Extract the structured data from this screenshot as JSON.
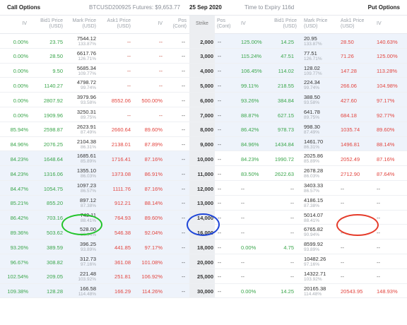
{
  "topbar": {
    "call_label": "Call Options",
    "futures": "BTCUSD200925 Futures: $9,653.77",
    "date": "25 Sep 2020",
    "expiry": "Time to Expiry 116d",
    "put_label": "Put Options"
  },
  "headers": {
    "iv": "IV",
    "bid1": "Bid1 Price",
    "usd": "(USD)",
    "mark": "Mark Price",
    "ask1": "Ask1 Price",
    "pos": "Pos",
    "cont": "(Cont)",
    "strike": "Strike"
  },
  "rows": [
    {
      "call": {
        "iv": "0.00%",
        "bid": "23.75",
        "mark": "7544.12",
        "mark_iv": "133.87%",
        "ask": "--",
        "ask_iv": "--",
        "pos": "--"
      },
      "strike": "2,000",
      "put": {
        "pos": "--",
        "iv": "125.00%",
        "bid": "14.25",
        "mark": "20.95",
        "mark_iv": "133.87%",
        "ask": "28.50",
        "ask_iv": "140.63%"
      }
    },
    {
      "call": {
        "iv": "0.00%",
        "bid": "28.50",
        "mark": "6617.76",
        "mark_iv": "126.71%",
        "ask": "--",
        "ask_iv": "--",
        "pos": "--"
      },
      "strike": "3,000",
      "put": {
        "pos": "--",
        "iv": "115.24%",
        "bid": "47.51",
        "mark": "77.51",
        "mark_iv": "126.71%",
        "ask": "71.26",
        "ask_iv": "125.00%"
      }
    },
    {
      "call": {
        "iv": "0.00%",
        "bid": "9.50",
        "mark": "5685.34",
        "mark_iv": "109.77%",
        "ask": "--",
        "ask_iv": "--",
        "pos": "--"
      },
      "strike": "4,000",
      "put": {
        "pos": "--",
        "iv": "106.45%",
        "bid": "114.02",
        "mark": "128.02",
        "mark_iv": "109.77%",
        "ask": "147.28",
        "ask_iv": "113.28%"
      }
    },
    {
      "call": {
        "iv": "0.00%",
        "bid": "1140.27",
        "mark": "4798.72",
        "mark_iv": "99.74%",
        "ask": "--",
        "ask_iv": "--",
        "pos": "--"
      },
      "strike": "5,000",
      "put": {
        "pos": "--",
        "iv": "99.11%",
        "bid": "218.55",
        "mark": "224.34",
        "mark_iv": "99.74%",
        "ask": "266.06",
        "ask_iv": "104.98%"
      }
    },
    {
      "call": {
        "iv": "0.00%",
        "bid": "2807.92",
        "mark": "3979.96",
        "mark_iv": "93.58%",
        "ask": "8552.06",
        "ask_iv": "500.00%",
        "pos": "--"
      },
      "strike": "6,000",
      "put": {
        "pos": "--",
        "iv": "93.26%",
        "bid": "384.84",
        "mark": "388.50",
        "mark_iv": "93.58%",
        "ask": "427.60",
        "ask_iv": "97.17%"
      }
    },
    {
      "call": {
        "iv": "0.00%",
        "bid": "1909.96",
        "mark": "3250.31",
        "mark_iv": "89.75%",
        "ask": "--",
        "ask_iv": "--",
        "pos": "--"
      },
      "strike": "7,000",
      "put": {
        "pos": "--",
        "iv": "88.87%",
        "bid": "627.15",
        "mark": "641.78",
        "mark_iv": "89.75%",
        "ask": "684.18",
        "ask_iv": "92.77%"
      }
    },
    {
      "call": {
        "iv": "85.94%",
        "bid": "2598.87",
        "mark": "2623.91",
        "mark_iv": "87.49%",
        "ask": "2660.64",
        "ask_iv": "89.60%",
        "pos": "--"
      },
      "strike": "8,000",
      "put": {
        "pos": "--",
        "iv": "86.42%",
        "bid": "978.73",
        "mark": "998.30",
        "mark_iv": "87.49%",
        "ask": "1035.74",
        "ask_iv": "89.60%"
      }
    },
    {
      "call": {
        "iv": "84.96%",
        "bid": "2076.25",
        "mark": "2104.38",
        "mark_iv": "86.31%",
        "ask": "2138.01",
        "ask_iv": "87.89%",
        "pos": "--"
      },
      "strike": "9,000",
      "put": {
        "pos": "--",
        "iv": "84.96%",
        "bid": "1434.84",
        "mark": "1461.70",
        "mark_iv": "86.31%",
        "ask": "1496.81",
        "ask_iv": "88.14%"
      }
    },
    {
      "call": {
        "iv": "84.23%",
        "bid": "1648.64",
        "mark": "1685.61",
        "mark_iv": "85.89%",
        "ask": "1716.41",
        "ask_iv": "87.16%",
        "pos": "--"
      },
      "strike": "10,000",
      "put": {
        "pos": "--",
        "iv": "84.23%",
        "bid": "1990.72",
        "mark": "2025.86",
        "mark_iv": "85.89%",
        "ask": "2052.49",
        "ask_iv": "87.16%"
      }
    },
    {
      "call": {
        "iv": "84.23%",
        "bid": "1316.06",
        "mark": "1355.10",
        "mark_iv": "86.03%",
        "ask": "1373.08",
        "ask_iv": "86.91%",
        "pos": "--"
      },
      "strike": "11,000",
      "put": {
        "pos": "--",
        "iv": "83.50%",
        "bid": "2622.63",
        "mark": "2678.28",
        "mark_iv": "86.03%",
        "ask": "2712.90",
        "ask_iv": "87.64%"
      }
    },
    {
      "call": {
        "iv": "84.47%",
        "bid": "1054.75",
        "mark": "1097.23",
        "mark_iv": "86.57%",
        "ask": "1111.76",
        "ask_iv": "87.16%",
        "pos": "--"
      },
      "strike": "12,000",
      "put": {
        "pos": "--",
        "iv": "--",
        "bid": "--",
        "mark": "3403.33",
        "mark_iv": "86.57%",
        "ask": "--",
        "ask_iv": "--"
      }
    },
    {
      "call": {
        "iv": "85.21%",
        "bid": "855.20",
        "mark": "897.12",
        "mark_iv": "87.38%",
        "ask": "912.21",
        "ask_iv": "88.14%",
        "pos": "--"
      },
      "strike": "13,000",
      "put": {
        "pos": "--",
        "iv": "--",
        "bid": "--",
        "mark": "4186.15",
        "mark_iv": "87.38%",
        "ask": "--",
        "ask_iv": "--"
      }
    },
    {
      "call": {
        "iv": "86.42%",
        "bid": "703.16",
        "mark": "742.11",
        "mark_iv": "88.41%",
        "ask": "764.93",
        "ask_iv": "89.60%",
        "pos": "--"
      },
      "strike": "14,000",
      "put": {
        "pos": "--",
        "iv": "--",
        "bid": "--",
        "mark": "5014.07",
        "mark_iv": "88.41%",
        "ask": "--",
        "ask_iv": "--"
      }
    },
    {
      "call": {
        "iv": "89.36%",
        "bid": "503.62",
        "mark": "528.00",
        "mark_iv": "90.94%",
        "ask": "546.38",
        "ask_iv": "92.04%",
        "pos": "--"
      },
      "strike": "16,000",
      "put": {
        "pos": "--",
        "iv": "--",
        "bid": "--",
        "mark": "6765.82",
        "mark_iv": "90.94%",
        "ask": "--",
        "ask_iv": "--"
      }
    },
    {
      "call": {
        "iv": "93.26%",
        "bid": "389.59",
        "mark": "396.25",
        "mark_iv": "93.89%",
        "ask": "441.85",
        "ask_iv": "97.17%",
        "pos": "--"
      },
      "strike": "18,000",
      "put": {
        "pos": "--",
        "iv": "0.00%",
        "bid": "4.75",
        "mark": "8599.92",
        "mark_iv": "93.89%",
        "ask": "--",
        "ask_iv": "--"
      }
    },
    {
      "call": {
        "iv": "96.67%",
        "bid": "308.82",
        "mark": "312.73",
        "mark_iv": "97.16%",
        "ask": "361.08",
        "ask_iv": "101.08%",
        "pos": "--"
      },
      "strike": "20,000",
      "put": {
        "pos": "--",
        "iv": "--",
        "bid": "--",
        "mark": "10482.26",
        "mark_iv": "97.16%",
        "ask": "--",
        "ask_iv": "--"
      }
    },
    {
      "call": {
        "iv": "102.54%",
        "bid": "209.05",
        "mark": "221.48",
        "mark_iv": "103.92%",
        "ask": "251.81",
        "ask_iv": "106.92%",
        "pos": "--"
      },
      "strike": "25,000",
      "put": {
        "pos": "--",
        "iv": "--",
        "bid": "--",
        "mark": "14322.71",
        "mark_iv": "103.92%",
        "ask": "--",
        "ask_iv": "--"
      }
    },
    {
      "call": {
        "iv": "109.38%",
        "bid": "128.28",
        "mark": "166.58",
        "mark_iv": "114.48%",
        "ask": "166.29",
        "ask_iv": "114.26%",
        "pos": "--"
      },
      "strike": "30,000",
      "put": {
        "pos": "--",
        "iv": "0.00%",
        "bid": "14.25",
        "mark": "20165.38",
        "mark_iv": "114.48%",
        "ask": "20543.95",
        "ask_iv": "148.93%"
      }
    }
  ],
  "colors": {
    "green": "#3aa64b",
    "red": "#e2453f",
    "itm_bg": "#eef3fb",
    "strike_bg": "#eceef1",
    "annotation_green": "#22c42a",
    "annotation_blue": "#2047d8",
    "annotation_red": "#e53b2a"
  }
}
